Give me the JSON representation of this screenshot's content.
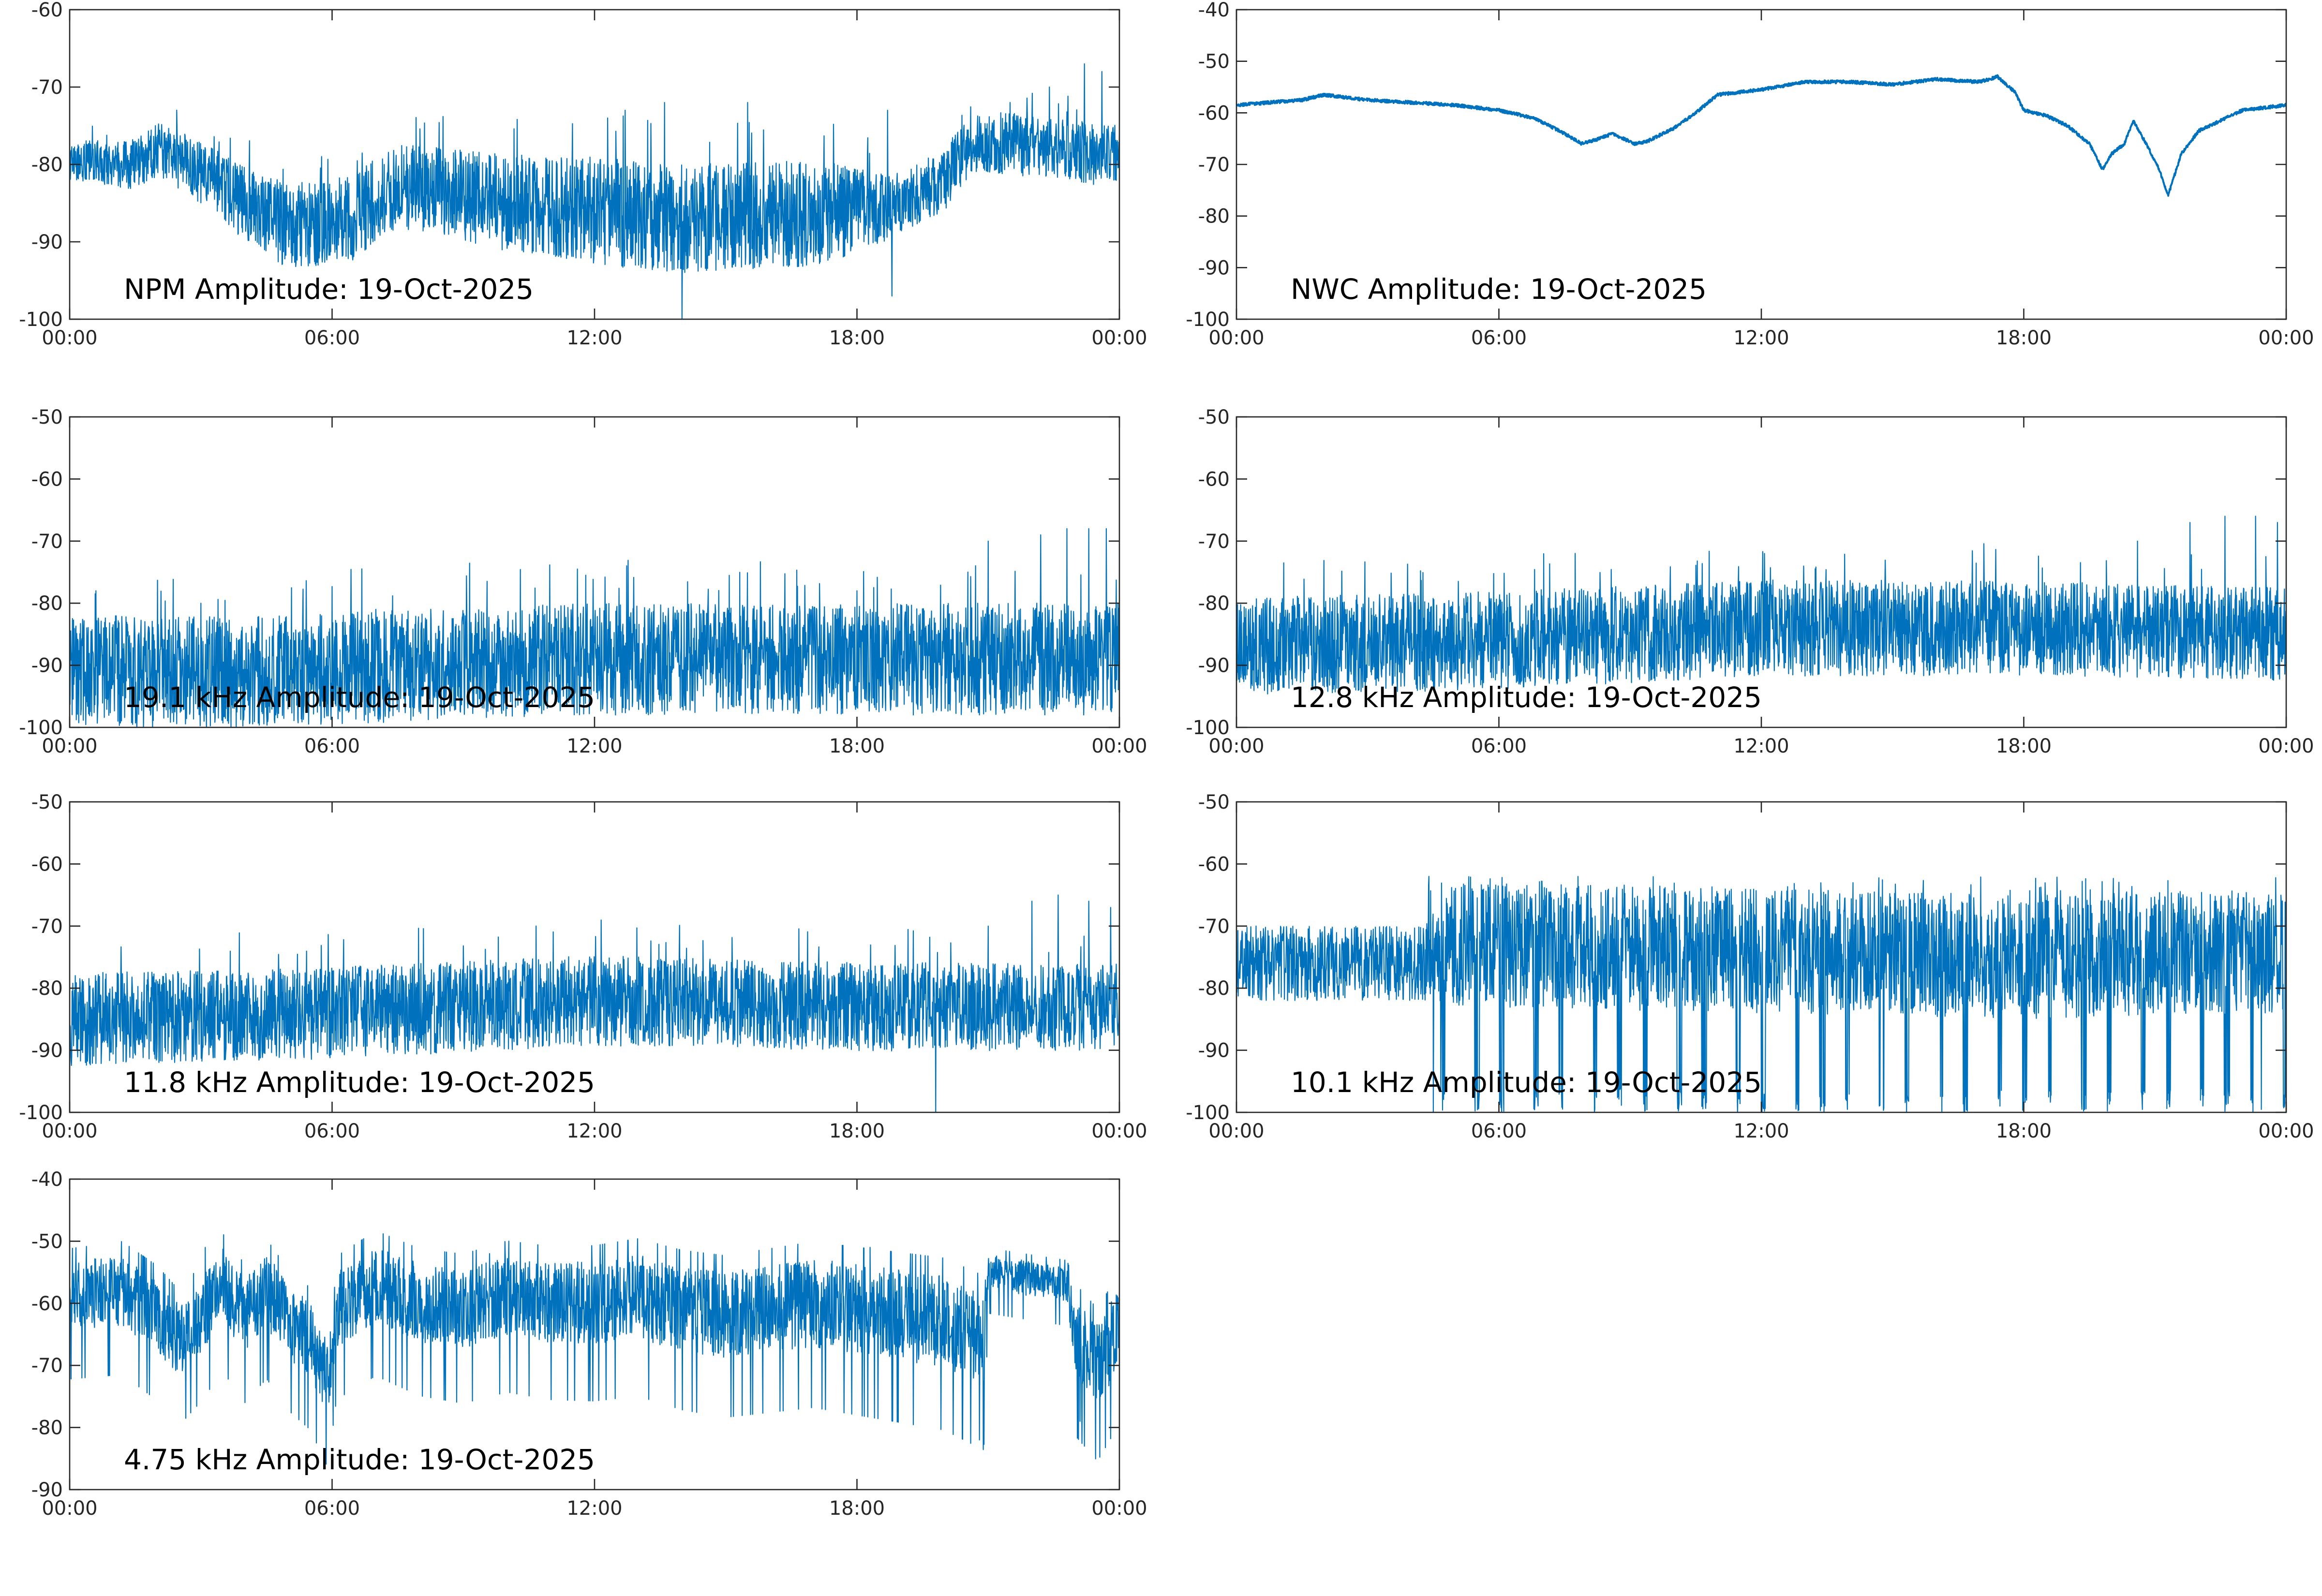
{
  "date": "19-Oct-2025",
  "colors": {
    "series": "#0072BD",
    "axis": "#262626",
    "background": "#ffffff"
  },
  "chart_data": [
    {
      "type": "line",
      "title": "NPM Amplitude: 19-Oct-2025",
      "xlabel": "",
      "ylabel": "",
      "xlim": [
        0,
        24
      ],
      "xticks": [
        0,
        6,
        12,
        18,
        24
      ],
      "xtick_labels": [
        "00:00",
        "06:00",
        "12:00",
        "18:00",
        "00:00"
      ],
      "ylim": [
        -100,
        -60
      ],
      "yticks": [
        -100,
        -90,
        -80,
        -70,
        -60
      ],
      "ytick_labels": [
        "-100",
        "-90",
        "-80",
        "-70",
        "-60"
      ],
      "series": [
        {
          "name": "NPM",
          "style": "noisy",
          "baseline": [
            [
              0,
              -79.5
            ],
            [
              1.5,
              -80
            ],
            [
              2,
              -78
            ],
            [
              3,
              -81
            ],
            [
              4,
              -85
            ],
            [
              5,
              -88
            ],
            [
              6.5,
              -87
            ],
            [
              7.3,
              -83
            ],
            [
              8,
              -83
            ],
            [
              9,
              -84
            ],
            [
              10,
              -85
            ],
            [
              12,
              -86
            ],
            [
              14,
              -87
            ],
            [
              16,
              -86.5
            ],
            [
              18,
              -86
            ],
            [
              19,
              -85
            ],
            [
              20,
              -82
            ],
            [
              20.5,
              -78
            ],
            [
              21,
              -77
            ],
            [
              24,
              -79
            ]
          ],
          "noise": [
            [
              0,
              2.5
            ],
            [
              3,
              4
            ],
            [
              5,
              5.5
            ],
            [
              8,
              5.5
            ],
            [
              12,
              7
            ],
            [
              17,
              7
            ],
            [
              19,
              4
            ],
            [
              21,
              4
            ],
            [
              24,
              4
            ]
          ],
          "spikes": [
            [
              12.3,
              -74
            ],
            [
              12.7,
              -73
            ],
            [
              13.6,
              -72
            ],
            [
              15.5,
              -72
            ],
            [
              18.7,
              -73
            ],
            [
              21.5,
              -72
            ],
            [
              22.4,
              -70
            ],
            [
              23.2,
              -67
            ],
            [
              23.6,
              -68
            ],
            [
              14,
              -100
            ],
            [
              18.8,
              -97
            ]
          ]
        }
      ]
    },
    {
      "type": "line",
      "title": "NWC Amplitude: 19-Oct-2025",
      "xlabel": "",
      "ylabel": "",
      "xlim": [
        0,
        24
      ],
      "xticks": [
        0,
        6,
        12,
        18,
        24
      ],
      "xtick_labels": [
        "00:00",
        "06:00",
        "12:00",
        "18:00",
        "00:00"
      ],
      "ylim": [
        -100,
        -40
      ],
      "yticks": [
        -100,
        -90,
        -80,
        -70,
        -60,
        -50,
        -40
      ],
      "ytick_labels": [
        "-100",
        "-90",
        "-80",
        "-70",
        "-60",
        "-50",
        "-40"
      ],
      "series": [
        {
          "name": "NWC",
          "style": "smooth",
          "baseline": [
            [
              0,
              -58.5
            ],
            [
              1.5,
              -57.5
            ],
            [
              2,
              -56.5
            ],
            [
              3,
              -57.5
            ],
            [
              4,
              -58
            ],
            [
              5,
              -58.5
            ],
            [
              6,
              -59.5
            ],
            [
              6.8,
              -61
            ],
            [
              7.5,
              -64
            ],
            [
              7.9,
              -66
            ],
            [
              8.3,
              -65
            ],
            [
              8.6,
              -64
            ],
            [
              9.1,
              -66
            ],
            [
              9.4,
              -65.5
            ],
            [
              10,
              -63
            ],
            [
              10.5,
              -60
            ],
            [
              11,
              -56.5
            ],
            [
              12,
              -55.5
            ],
            [
              13,
              -54
            ],
            [
              14,
              -54
            ],
            [
              15,
              -54.5
            ],
            [
              15.5,
              -54
            ],
            [
              16,
              -53.5
            ],
            [
              17,
              -54
            ],
            [
              17.4,
              -53
            ],
            [
              17.8,
              -56
            ],
            [
              18,
              -59.5
            ],
            [
              18.5,
              -60.5
            ],
            [
              19,
              -62.5
            ],
            [
              19.5,
              -66
            ],
            [
              19.8,
              -71
            ],
            [
              20,
              -68
            ],
            [
              20.3,
              -66
            ],
            [
              20.5,
              -61.5
            ],
            [
              20.8,
              -66
            ],
            [
              21.1,
              -71
            ],
            [
              21.3,
              -76
            ],
            [
              21.6,
              -68
            ],
            [
              22,
              -63.5
            ],
            [
              23,
              -59.5
            ],
            [
              24,
              -58.5
            ]
          ],
          "noise": [
            [
              0,
              0.6
            ],
            [
              24,
              0.6
            ]
          ],
          "spikes": []
        }
      ]
    },
    {
      "type": "line",
      "title": "19.1 kHz Amplitude: 19-Oct-2025",
      "xlabel": "",
      "ylabel": "",
      "xlim": [
        0,
        24
      ],
      "xticks": [
        0,
        6,
        12,
        18,
        24
      ],
      "xtick_labels": [
        "00:00",
        "06:00",
        "12:00",
        "18:00",
        "00:00"
      ],
      "ylim": [
        -100,
        -50
      ],
      "yticks": [
        -100,
        -90,
        -80,
        -70,
        -60,
        -50
      ],
      "ytick_labels": [
        "-100",
        "-90",
        "-80",
        "-70",
        "-60",
        "-50"
      ],
      "series": [
        {
          "name": "19.1 kHz",
          "style": "noisy",
          "baseline": [
            [
              0,
              -91
            ],
            [
              4,
              -91
            ],
            [
              8,
              -90
            ],
            [
              12,
              -89
            ],
            [
              16,
              -89
            ],
            [
              20,
              -89
            ],
            [
              24,
              -89
            ]
          ],
          "noise": [
            [
              0,
              9
            ],
            [
              24,
              9
            ]
          ],
          "spikes": [
            [
              0.6,
              -78
            ],
            [
              3,
              -80
            ],
            [
              7,
              -81
            ],
            [
              18,
              -78
            ],
            [
              21,
              -70
            ],
            [
              22.2,
              -69
            ],
            [
              22.8,
              -68
            ],
            [
              23.3,
              -68
            ],
            [
              23.7,
              -68
            ]
          ]
        }
      ]
    },
    {
      "type": "line",
      "title": "12.8 kHz Amplitude: 19-Oct-2025",
      "xlabel": "",
      "ylabel": "",
      "xlim": [
        0,
        24
      ],
      "xticks": [
        0,
        6,
        12,
        18,
        24
      ],
      "xtick_labels": [
        "00:00",
        "06:00",
        "12:00",
        "18:00",
        "00:00"
      ],
      "ylim": [
        -100,
        -50
      ],
      "yticks": [
        -100,
        -90,
        -80,
        -70,
        -60,
        -50
      ],
      "ytick_labels": [
        "-100",
        "-90",
        "-80",
        "-70",
        "-60",
        "-50"
      ],
      "series": [
        {
          "name": "12.8 kHz",
          "style": "noisy",
          "baseline": [
            [
              0,
              -87
            ],
            [
              6,
              -86
            ],
            [
              12,
              -84
            ],
            [
              18,
              -84
            ],
            [
              24,
              -85
            ]
          ],
          "noise": [
            [
              0,
              8
            ],
            [
              24,
              7.5
            ]
          ],
          "spikes": [
            [
              3.8,
              -79
            ],
            [
              20.6,
              -70
            ],
            [
              21.8,
              -67
            ],
            [
              22.6,
              -66
            ],
            [
              23.3,
              -66
            ],
            [
              23.8,
              -67
            ]
          ]
        }
      ]
    },
    {
      "type": "line",
      "title": "11.8 kHz Amplitude: 19-Oct-2025",
      "xlabel": "",
      "ylabel": "",
      "xlim": [
        0,
        24
      ],
      "xticks": [
        0,
        6,
        12,
        18,
        24
      ],
      "xtick_labels": [
        "00:00",
        "06:00",
        "12:00",
        "18:00",
        "00:00"
      ],
      "ylim": [
        -100,
        -50
      ],
      "yticks": [
        -100,
        -90,
        -80,
        -70,
        -60,
        -50
      ],
      "ytick_labels": [
        "-100",
        "-90",
        "-80",
        "-70",
        "-60",
        "-50"
      ],
      "series": [
        {
          "name": "11.8 kHz",
          "style": "noisy",
          "baseline": [
            [
              0,
              -85
            ],
            [
              6,
              -84
            ],
            [
              12,
              -82
            ],
            [
              18,
              -83
            ],
            [
              24,
              -83
            ]
          ],
          "noise": [
            [
              0,
              7.5
            ],
            [
              24,
              7
            ]
          ],
          "spikes": [
            [
              19.8,
              -100
            ],
            [
              21,
              -70
            ],
            [
              22,
              -66
            ],
            [
              22.6,
              -65
            ],
            [
              23.3,
              -66
            ],
            [
              23.8,
              -67
            ]
          ]
        }
      ]
    },
    {
      "type": "line",
      "title": "10.1 kHz Amplitude: 19-Oct-2025",
      "xlabel": "",
      "ylabel": "",
      "xlim": [
        0,
        24
      ],
      "xticks": [
        0,
        6,
        12,
        18,
        24
      ],
      "xtick_labels": [
        "00:00",
        "06:00",
        "12:00",
        "18:00",
        "00:00"
      ],
      "ylim": [
        -100,
        -50
      ],
      "yticks": [
        -100,
        -90,
        -80,
        -70,
        -60,
        -50
      ],
      "ytick_labels": [
        "-100",
        "-90",
        "-80",
        "-70",
        "-60",
        "-50"
      ],
      "series": [
        {
          "name": "10.1 kHz",
          "style": "bursty",
          "burst_start": 4.3,
          "baseline": [
            [
              0,
              -76
            ],
            [
              4.3,
              -76
            ],
            [
              5,
              -73
            ],
            [
              12,
              -74
            ],
            [
              18,
              -75
            ],
            [
              24,
              -74
            ]
          ],
          "noise": [
            [
              0,
              6
            ],
            [
              4.3,
              6
            ],
            [
              5,
              10
            ],
            [
              24,
              10
            ]
          ],
          "spikes": [
            [
              4.4,
              -62
            ],
            [
              4.5,
              -100
            ]
          ]
        }
      ]
    },
    {
      "type": "line",
      "title": "4.75 kHz Amplitude: 19-Oct-2025",
      "xlabel": "",
      "ylabel": "",
      "xlim": [
        0,
        24
      ],
      "xticks": [
        0,
        6,
        12,
        18,
        24
      ],
      "xtick_labels": [
        "00:00",
        "06:00",
        "12:00",
        "18:00",
        "00:00"
      ],
      "ylim": [
        -90,
        -40
      ],
      "yticks": [
        -90,
        -80,
        -70,
        -60,
        -50,
        -40
      ],
      "ytick_labels": [
        "-90",
        "-80",
        "-70",
        "-60",
        "-50",
        "-40"
      ],
      "series": [
        {
          "name": "4.75 kHz",
          "style": "blocky",
          "baseline": [
            [
              0,
              -59
            ],
            [
              1.2,
              -58
            ],
            [
              2,
              -62
            ],
            [
              2.5,
              -66
            ],
            [
              3,
              -62
            ],
            [
              3.5,
              -57
            ],
            [
              4,
              -62
            ],
            [
              4.5,
              -58
            ],
            [
              5,
              -63
            ],
            [
              5.5,
              -66
            ],
            [
              5.9,
              -72
            ],
            [
              6.1,
              -61
            ],
            [
              7,
              -57
            ],
            [
              8,
              -60
            ],
            [
              9,
              -61
            ],
            [
              10,
              -59
            ],
            [
              11,
              -60
            ],
            [
              12,
              -60
            ],
            [
              13,
              -59
            ],
            [
              14,
              -61
            ],
            [
              15,
              -62
            ],
            [
              16,
              -61
            ],
            [
              17,
              -60
            ],
            [
              18,
              -61
            ],
            [
              19,
              -62
            ],
            [
              20,
              -63
            ],
            [
              20.9,
              -66
            ],
            [
              21,
              -55
            ],
            [
              22.8,
              -57
            ],
            [
              23,
              -66
            ],
            [
              23.5,
              -70
            ],
            [
              24,
              -64
            ]
          ],
          "noise": [
            [
              0,
              6
            ],
            [
              20.9,
              8
            ],
            [
              21,
              3
            ],
            [
              22.8,
              3
            ],
            [
              23,
              7
            ],
            [
              24,
              7
            ]
          ],
          "spikes": [
            [
              3.1,
              -51
            ],
            [
              9.6,
              -52
            ],
            [
              18.3,
              -51
            ],
            [
              20.8,
              -82
            ],
            [
              23.1,
              -79
            ]
          ]
        }
      ]
    }
  ]
}
